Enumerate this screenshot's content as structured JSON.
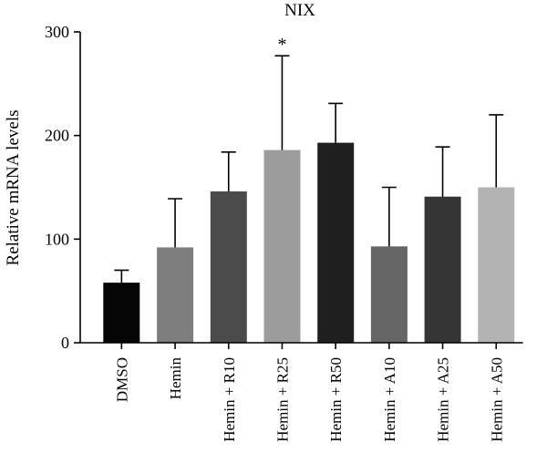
{
  "chart_data": {
    "type": "bar",
    "title": "NIX",
    "xlabel": "",
    "ylabel": "Relative mRNA levels",
    "ylim": [
      0,
      300
    ],
    "yticks": [
      0,
      100,
      200,
      300
    ],
    "grid": false,
    "categories": [
      "DMSO",
      "Hemin",
      "Hemin + R10",
      "Hemin + R25",
      "Hemin + R50",
      "Hemin + A10",
      "Hemin + A25",
      "Hemin + A50"
    ],
    "values": [
      58,
      92,
      146,
      186,
      193,
      93,
      141,
      150
    ],
    "errors": [
      12,
      47,
      38,
      91,
      38,
      57,
      48,
      70
    ],
    "bar_colors": [
      "#050505",
      "#7e7e7e",
      "#4b4b4b",
      "#9c9c9c",
      "#1f1f1f",
      "#666666",
      "#353535",
      "#b3b3b3"
    ],
    "annotations": [
      {
        "category": "Hemin + R25",
        "text": "*"
      }
    ]
  }
}
